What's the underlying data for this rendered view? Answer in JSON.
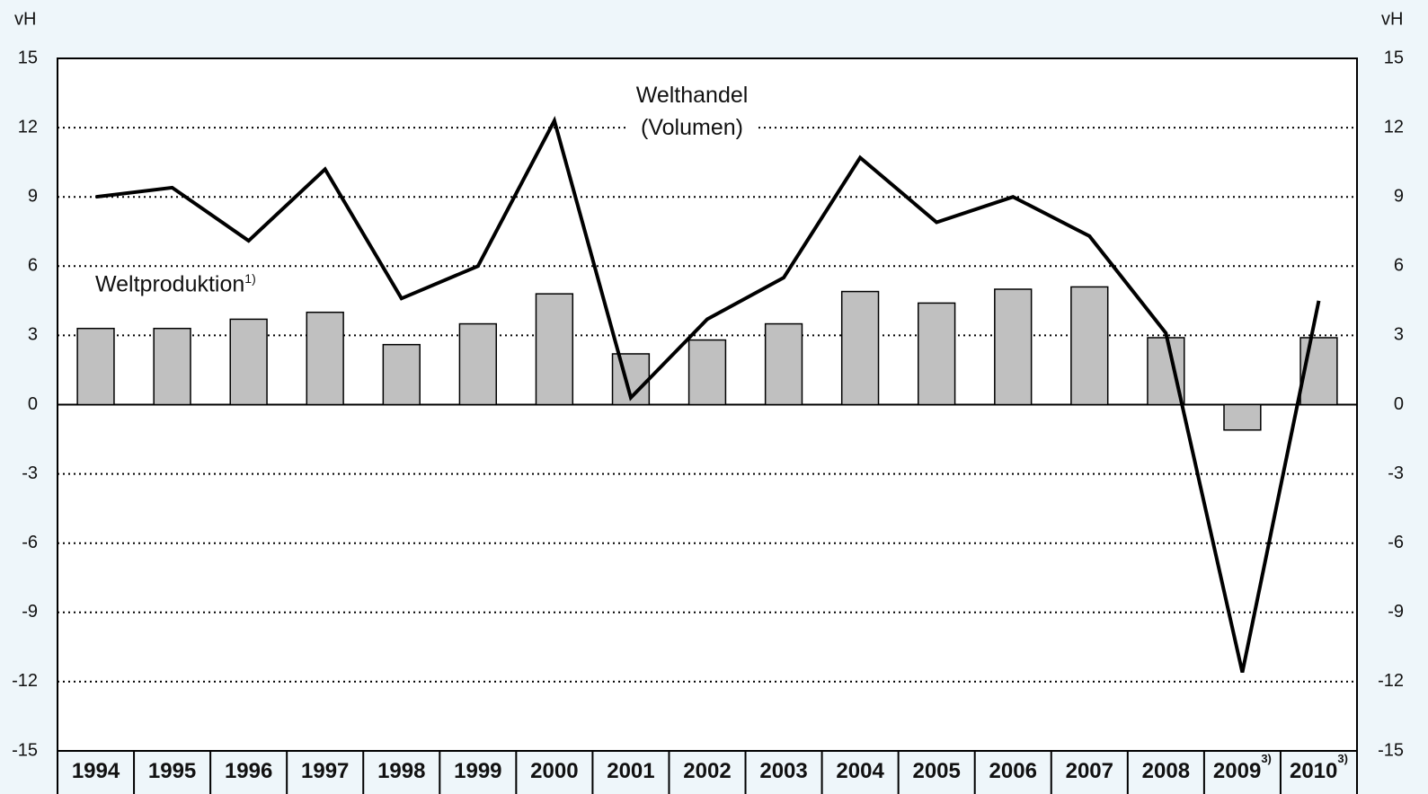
{
  "chart_data": {
    "type": "bar-line",
    "y_label": "vH",
    "y2_label": "vH",
    "categories": [
      "1994",
      "1995",
      "1996",
      "1997",
      "1998",
      "1999",
      "2000",
      "2001",
      "2002",
      "2003",
      "2004",
      "2005",
      "2006",
      "2007",
      "2008",
      "2009",
      "2010"
    ],
    "category_footnotes": [
      null,
      null,
      null,
      null,
      null,
      null,
      null,
      null,
      null,
      null,
      null,
      null,
      null,
      null,
      null,
      "3)",
      "3)"
    ],
    "series": [
      {
        "name": "Weltproduktion",
        "footnote": "1)",
        "type": "bar",
        "color": "#c0c0c0",
        "values": [
          3.3,
          3.3,
          3.7,
          4.0,
          2.6,
          3.5,
          4.8,
          2.2,
          2.8,
          3.5,
          4.9,
          4.4,
          5.0,
          5.1,
          2.9,
          -1.1,
          2.9
        ]
      },
      {
        "name": "Welthandel (Volumen)",
        "type": "line",
        "color": "#000000",
        "values": [
          9.0,
          9.4,
          7.1,
          10.2,
          4.6,
          6.0,
          12.3,
          0.3,
          3.7,
          5.5,
          10.7,
          7.9,
          9.0,
          7.3,
          3.1,
          -11.6,
          4.5
        ]
      }
    ],
    "ylim": [
      -15,
      15
    ],
    "yticks": [
      -15,
      -12,
      -9,
      -6,
      -3,
      0,
      3,
      6,
      9,
      12,
      15
    ],
    "y2lim": [
      -15,
      15
    ],
    "y2ticks": [
      -15,
      -12,
      -9,
      -6,
      -3,
      0,
      3,
      6,
      9,
      12,
      15
    ],
    "grid": true
  }
}
